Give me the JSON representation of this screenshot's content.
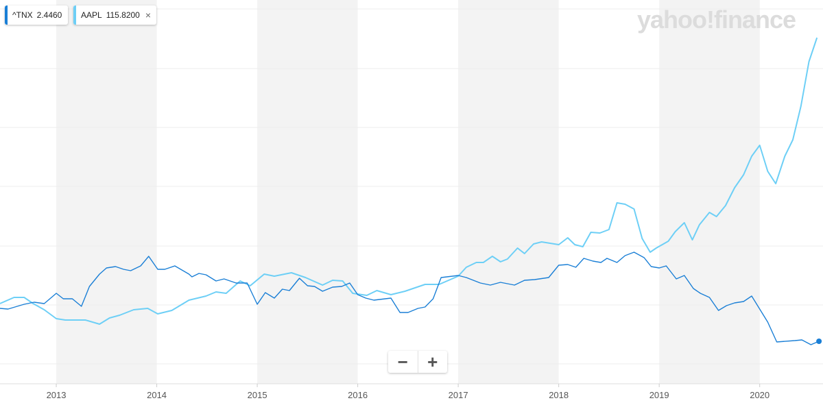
{
  "chart_data": {
    "type": "line",
    "logo": "yahoo!finance",
    "xlim": [
      2012.44,
      2020.63
    ],
    "xticks": [
      2013,
      2014,
      2015,
      2016,
      2017,
      2018,
      2019,
      2020
    ],
    "ylim": [
      -29,
      531
    ],
    "shaded_years": true,
    "series": [
      {
        "name": "^TNX",
        "price": "2.4460",
        "color": "#1a7fd6",
        "x": [
          2012.44,
          2012.52,
          2012.68,
          2012.78,
          2012.88,
          2013.0,
          2013.07,
          2013.16,
          2013.25,
          2013.33,
          2013.43,
          2013.5,
          2013.59,
          2013.67,
          2013.74,
          2013.84,
          2013.92,
          2014.01,
          2014.08,
          2014.18,
          2014.32,
          2014.35,
          2014.42,
          2014.49,
          2014.59,
          2014.67,
          2014.79,
          2014.9,
          2015.0,
          2015.08,
          2015.17,
          2015.25,
          2015.32,
          2015.42,
          2015.5,
          2015.57,
          2015.65,
          2015.75,
          2015.84,
          2015.92,
          2016.0,
          2016.08,
          2016.16,
          2016.33,
          2016.42,
          2016.5,
          2016.6,
          2016.67,
          2016.75,
          2016.83,
          2017.0,
          2017.08,
          2017.22,
          2017.32,
          2017.42,
          2017.56,
          2017.66,
          2017.76,
          2017.9,
          2018.0,
          2018.09,
          2018.17,
          2018.25,
          2018.34,
          2018.42,
          2018.48,
          2018.58,
          2018.66,
          2018.75,
          2018.85,
          2018.92,
          2019.0,
          2019.07,
          2019.17,
          2019.25,
          2019.34,
          2019.41,
          2019.5,
          2019.59,
          2019.67,
          2019.75,
          2019.84,
          2019.92,
          2020.08,
          2020.17,
          2020.35,
          2020.42,
          2020.51,
          2020.59
        ],
        "values": [
          81,
          80,
          87,
          90,
          88,
          103,
          95,
          95,
          84,
          113,
          131,
          140,
          142,
          138,
          136,
          143,
          157,
          138,
          138,
          143,
          131,
          127,
          132,
          130,
          121,
          124,
          118,
          118,
          87,
          104,
          96,
          109,
          107,
          125,
          114,
          113,
          106,
          112,
          113,
          118,
          101,
          96,
          93,
          96,
          75,
          75,
          81,
          83,
          95,
          126,
          129,
          126,
          118,
          115,
          119,
          115,
          122,
          123,
          126,
          144,
          145,
          141,
          154,
          150,
          148,
          154,
          148,
          158,
          163,
          155,
          142,
          140,
          143,
          124,
          129,
          110,
          103,
          97,
          78,
          85,
          89,
          91,
          99,
          61,
          32,
          34,
          35,
          28,
          33
        ]
      },
      {
        "name": "AAPL",
        "price": "115.8200",
        "color": "#6dcff6",
        "x": [
          2012.44,
          2012.58,
          2012.68,
          2012.77,
          2012.88,
          2013.0,
          2013.09,
          2013.29,
          2013.43,
          2013.53,
          2013.63,
          2013.77,
          2013.91,
          2014.01,
          2014.15,
          2014.32,
          2014.49,
          2014.59,
          2014.69,
          2014.83,
          2014.93,
          2015.07,
          2015.17,
          2015.34,
          2015.48,
          2015.65,
          2015.75,
          2015.85,
          2015.95,
          2016.09,
          2016.19,
          2016.33,
          2016.47,
          2016.67,
          2016.81,
          2017.0,
          2017.08,
          2017.18,
          2017.25,
          2017.34,
          2017.42,
          2017.49,
          2017.59,
          2017.66,
          2017.75,
          2017.83,
          2018.0,
          2018.09,
          2018.16,
          2018.24,
          2018.32,
          2018.41,
          2018.5,
          2018.58,
          2018.66,
          2018.75,
          2018.83,
          2018.91,
          2018.97,
          2019.09,
          2019.16,
          2019.25,
          2019.33,
          2019.4,
          2019.5,
          2019.57,
          2019.66,
          2019.75,
          2019.84,
          2019.92,
          2020.0,
          2020.08,
          2020.16,
          2020.25,
          2020.33,
          2020.41,
          2020.49,
          2020.57
        ],
        "values": [
          88,
          97,
          97,
          88,
          79,
          66,
          64,
          64,
          58,
          67,
          71,
          79,
          81,
          73,
          78,
          93,
          99,
          105,
          103,
          121,
          114,
          131,
          128,
          133,
          126,
          115,
          122,
          121,
          103,
          100,
          107,
          101,
          106,
          116,
          116,
          128,
          141,
          148,
          148,
          157,
          149,
          153,
          169,
          161,
          175,
          178,
          174,
          184,
          174,
          171,
          192,
          191,
          196,
          235,
          233,
          226,
          183,
          163,
          169,
          179,
          193,
          206,
          181,
          203,
          221,
          215,
          231,
          257,
          276,
          303,
          319,
          281,
          263,
          303,
          327,
          376,
          441,
          476
        ]
      }
    ]
  }
}
